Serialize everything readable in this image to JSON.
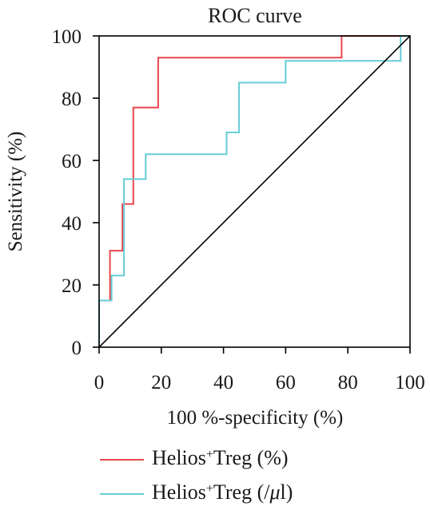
{
  "chart_data": {
    "type": "line",
    "title": "ROC curve",
    "xlabel": "100 %-specificity (%)",
    "ylabel": "Sensitivity (%)",
    "xlim": [
      0,
      100
    ],
    "ylim": [
      0,
      100
    ],
    "xticks": [
      0,
      20,
      40,
      60,
      80,
      100
    ],
    "yticks": [
      0,
      20,
      40,
      60,
      80,
      100
    ],
    "grid": false,
    "legend_position": "bottom-left",
    "series": [
      {
        "name": "Helios+Treg (%)",
        "legend_parts": {
          "prefix": "Helios",
          "sup": "+",
          "suffix": "Treg (%)"
        },
        "color": "#e8474c",
        "x": [
          0,
          0,
          3.5,
          3.5,
          7.5,
          7.5,
          11,
          11,
          19,
          19,
          78,
          78,
          100
        ],
        "y": [
          0,
          15,
          15,
          31,
          31,
          46,
          46,
          77,
          77,
          93,
          93,
          100,
          100
        ]
      },
      {
        "name": "Helios+Treg (/μl)",
        "legend_parts": {
          "prefix": "Helios",
          "sup": "+",
          "suffix": "Treg (/",
          "italic": "μ",
          "suffix2": "l)"
        },
        "color": "#66ccd6",
        "x": [
          0,
          0,
          4,
          4,
          8,
          8,
          15,
          15,
          41,
          41,
          45,
          45,
          60,
          60,
          97,
          97,
          100
        ],
        "y": [
          0,
          15,
          15,
          23,
          23,
          54,
          54,
          62,
          62,
          69,
          69,
          85,
          85,
          92,
          92,
          100,
          100
        ]
      },
      {
        "name": "",
        "color": "#000000",
        "x": [
          0,
          100
        ],
        "y": [
          0,
          100
        ]
      }
    ]
  }
}
